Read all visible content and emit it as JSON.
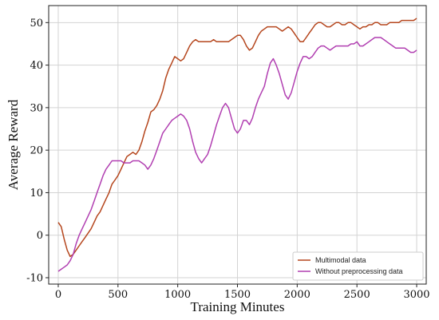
{
  "chart_data": {
    "type": "line",
    "xlabel": "Training Minutes",
    "ylabel": "Average Reward",
    "xlim": [
      -80,
      3080
    ],
    "ylim": [
      -11.5,
      54
    ],
    "xticks": [
      0,
      500,
      1000,
      1500,
      2000,
      2500,
      3000
    ],
    "yticks": [
      -10,
      0,
      10,
      20,
      30,
      40,
      50
    ],
    "grid": true,
    "legend": "bottom-right",
    "series": [
      {
        "name": "Multimodal data",
        "color": "#b5461d",
        "x": [
          0,
          25,
          50,
          75,
          100,
          125,
          150,
          175,
          200,
          225,
          250,
          275,
          300,
          325,
          350,
          375,
          400,
          425,
          450,
          475,
          500,
          525,
          550,
          575,
          600,
          625,
          650,
          675,
          700,
          725,
          750,
          775,
          800,
          825,
          850,
          875,
          900,
          925,
          950,
          975,
          1000,
          1025,
          1050,
          1075,
          1100,
          1125,
          1150,
          1175,
          1200,
          1225,
          1250,
          1275,
          1300,
          1325,
          1350,
          1375,
          1400,
          1425,
          1450,
          1475,
          1500,
          1525,
          1550,
          1575,
          1600,
          1625,
          1650,
          1675,
          1700,
          1725,
          1750,
          1775,
          1800,
          1825,
          1850,
          1875,
          1900,
          1925,
          1950,
          1975,
          2000,
          2025,
          2050,
          2075,
          2100,
          2125,
          2150,
          2175,
          2200,
          2225,
          2250,
          2275,
          2300,
          2325,
          2350,
          2375,
          2400,
          2425,
          2450,
          2475,
          2500,
          2525,
          2550,
          2575,
          2600,
          2625,
          2650,
          2675,
          2700,
          2725,
          2750,
          2775,
          2800,
          2825,
          2850,
          2875,
          2900,
          2925,
          2950,
          2975,
          3000
        ],
        "values": [
          3,
          2,
          -1,
          -3.5,
          -5,
          -4.5,
          -3.5,
          -2.5,
          -1.5,
          -0.5,
          0.5,
          1.5,
          3,
          4.5,
          5.5,
          7,
          8.5,
          10,
          12,
          13,
          14,
          15.5,
          17,
          18.5,
          19,
          19.5,
          19,
          20,
          22,
          24.5,
          26.5,
          29,
          29.5,
          30.5,
          32,
          34,
          37,
          39,
          40.5,
          42,
          41.5,
          41,
          41.5,
          43,
          44.5,
          45.5,
          46,
          45.5,
          45.5,
          45.5,
          45.5,
          45.5,
          46,
          45.5,
          45.5,
          45.5,
          45.5,
          45.5,
          46,
          46.5,
          47,
          47,
          46,
          44.5,
          43.5,
          44,
          45.5,
          47,
          48,
          48.5,
          49,
          49,
          49,
          49,
          48.5,
          48,
          48.5,
          49,
          48.5,
          47.5,
          46.5,
          45.5,
          45.5,
          46.5,
          47.5,
          48.5,
          49.5,
          50,
          50,
          49.5,
          49,
          49,
          49.5,
          50,
          50,
          49.5,
          49.5,
          50,
          50,
          49.5,
          49,
          48.5,
          49,
          49,
          49.5,
          49.5,
          50,
          50,
          49.5,
          49.5,
          49.5,
          50,
          50,
          50,
          50,
          50.5,
          50.5,
          50.5,
          50.5,
          50.5,
          51
        ]
      },
      {
        "name": "Without preprocessing data",
        "color": "#b13fb1",
        "x": [
          0,
          25,
          50,
          75,
          100,
          125,
          150,
          175,
          200,
          225,
          250,
          275,
          300,
          325,
          350,
          375,
          400,
          425,
          450,
          475,
          500,
          525,
          550,
          575,
          600,
          625,
          650,
          675,
          700,
          725,
          750,
          775,
          800,
          825,
          850,
          875,
          900,
          925,
          950,
          975,
          1000,
          1025,
          1050,
          1075,
          1100,
          1125,
          1150,
          1175,
          1200,
          1225,
          1250,
          1275,
          1300,
          1325,
          1350,
          1375,
          1400,
          1425,
          1450,
          1475,
          1500,
          1525,
          1550,
          1575,
          1600,
          1625,
          1650,
          1675,
          1700,
          1725,
          1750,
          1775,
          1800,
          1825,
          1850,
          1875,
          1900,
          1925,
          1950,
          1975,
          2000,
          2025,
          2050,
          2075,
          2100,
          2125,
          2150,
          2175,
          2200,
          2225,
          2250,
          2275,
          2300,
          2325,
          2350,
          2375,
          2400,
          2425,
          2450,
          2475,
          2500,
          2525,
          2550,
          2575,
          2600,
          2625,
          2650,
          2675,
          2700,
          2725,
          2750,
          2775,
          2800,
          2825,
          2850,
          2875,
          2900,
          2925,
          2950,
          2975,
          3000
        ],
        "values": [
          -8.5,
          -8,
          -7.5,
          -7,
          -6,
          -4.5,
          -2,
          0,
          1.5,
          3,
          4.5,
          6,
          8,
          10,
          12,
          14,
          15.5,
          16.5,
          17.5,
          17.5,
          17.5,
          17.5,
          17,
          17,
          17,
          17.5,
          17.5,
          17.5,
          17,
          16.5,
          15.5,
          16.5,
          18,
          20,
          22,
          24,
          25,
          26,
          27,
          27.5,
          28,
          28.5,
          28,
          27,
          25,
          22,
          19.5,
          18,
          17,
          18,
          19,
          21,
          23.5,
          26,
          28,
          30,
          31,
          30,
          27.5,
          25,
          24,
          25,
          27,
          27,
          26,
          27.5,
          30,
          32,
          33.5,
          35,
          38,
          40.5,
          41.5,
          40,
          38,
          35.5,
          33,
          32,
          33.5,
          36,
          38.5,
          40.5,
          42,
          42,
          41.5,
          42,
          43,
          44,
          44.5,
          44.5,
          44,
          43.5,
          44,
          44.5,
          44.5,
          44.5,
          44.5,
          44.5,
          45,
          45,
          45.5,
          44.5,
          44.5,
          45,
          45.5,
          46,
          46.5,
          46.5,
          46.5,
          46,
          45.5,
          45,
          44.5,
          44,
          44,
          44,
          44,
          43.5,
          43,
          43,
          43.5
        ]
      }
    ]
  }
}
